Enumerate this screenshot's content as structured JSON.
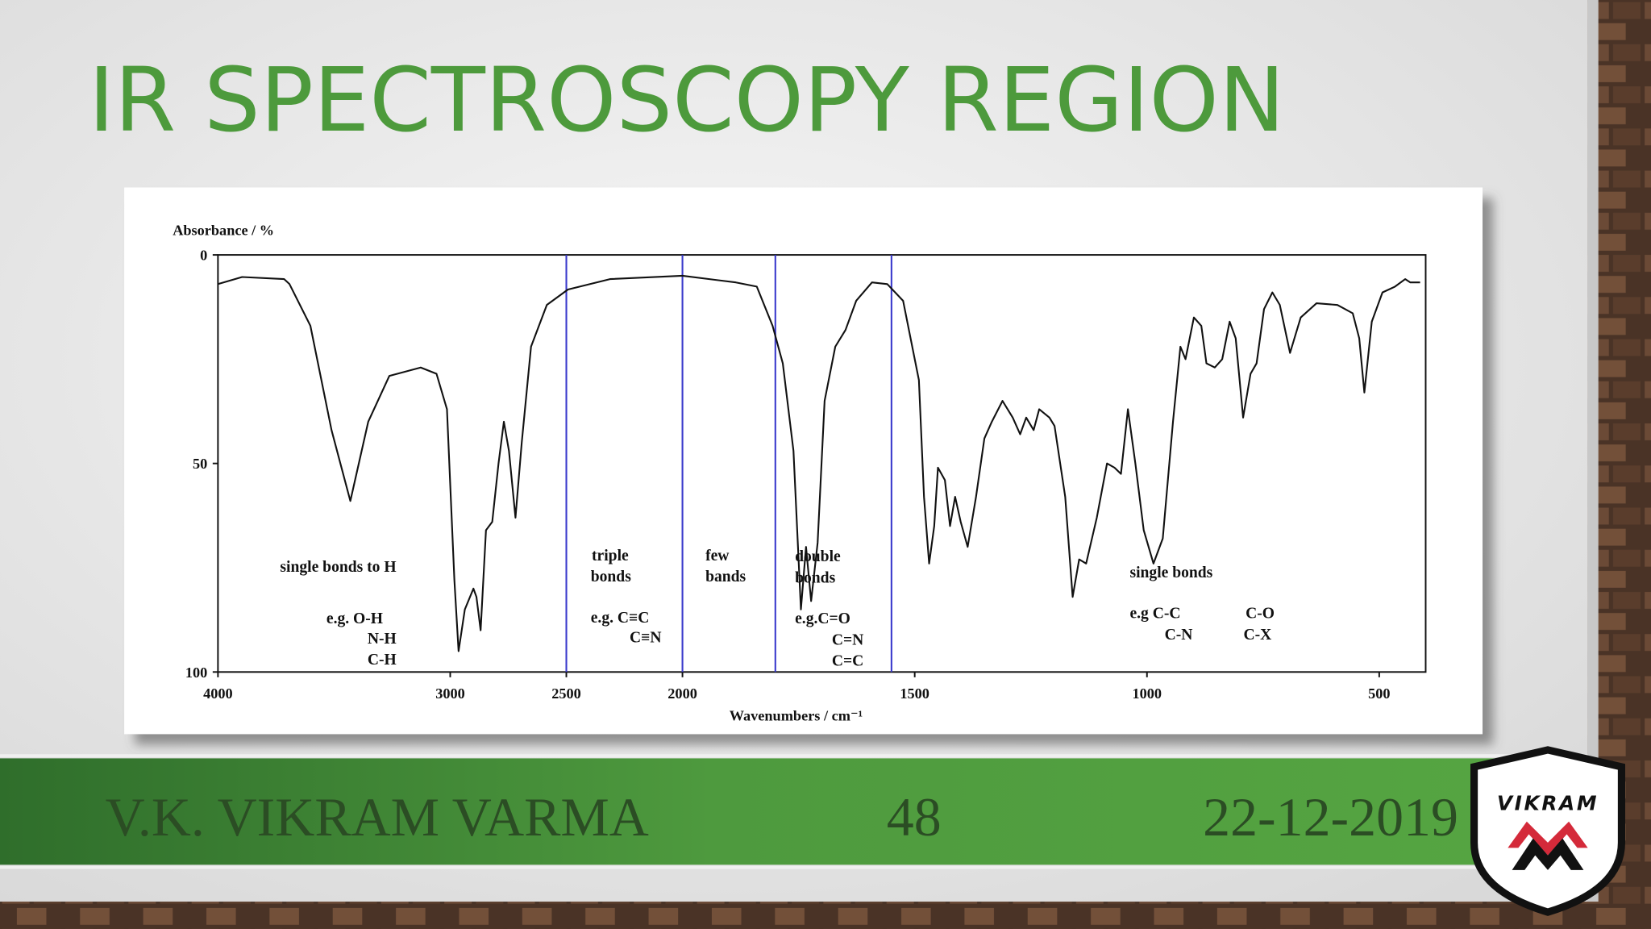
{
  "title": "IR SPECTROSCOPY REGION",
  "footer": {
    "author": "V.K. VIKRAM VARMA",
    "page": "48",
    "date": "22-12-2019"
  },
  "logo": {
    "text": "VIKRAM"
  },
  "chart_data": {
    "type": "line",
    "ylabel": "Absorbance / %",
    "xlabel": "Wavenumbers / cm⁻¹",
    "xlim": [
      4000,
      400
    ],
    "x_scale_change": {
      "at": 2000,
      "factor": 2
    },
    "ylim": [
      0,
      100
    ],
    "y_inverted": true,
    "yticks": [
      0,
      50,
      100
    ],
    "xticks": [
      4000,
      3000,
      2500,
      2000,
      1500,
      1000,
      500
    ],
    "grid": false,
    "color": "#111111",
    "dividers": [
      2500,
      2000,
      1800,
      1550
    ],
    "divider_color": "#3a3acc",
    "x": [
      4000,
      3896,
      3715,
      3692,
      3602,
      3511,
      3430,
      3353,
      3262,
      3127,
      3059,
      3014,
      2982,
      2964,
      2937,
      2900,
      2887,
      2869,
      2846,
      2819,
      2792,
      2769,
      2747,
      2719,
      2692,
      2652,
      2584,
      2493,
      2312,
      2000,
      1885,
      1840,
      1806,
      1784,
      1761,
      1745,
      1734,
      1723,
      1709,
      1694,
      1671,
      1649,
      1626,
      1592,
      1559,
      1525,
      1491,
      1480,
      1469,
      1458,
      1450,
      1435,
      1424,
      1413,
      1401,
      1386,
      1368,
      1350,
      1334,
      1311,
      1289,
      1273,
      1260,
      1244,
      1232,
      1210,
      1199,
      1176,
      1160,
      1146,
      1131,
      1108,
      1086,
      1070,
      1056,
      1041,
      1025,
      1007,
      986,
      966,
      944,
      928,
      917,
      899,
      883,
      872,
      854,
      838,
      822,
      809,
      793,
      777,
      764,
      748,
      730,
      714,
      692,
      669,
      635,
      590,
      557,
      543,
      532,
      516,
      493,
      466,
      444,
      433,
      412
    ],
    "values": [
      7,
      5.3,
      5.8,
      7,
      17,
      42,
      59,
      40,
      29,
      27,
      28.5,
      37,
      78,
      95,
      85,
      80,
      82,
      90,
      66,
      64,
      50,
      40,
      47,
      63,
      45,
      22,
      12,
      8.3,
      5.8,
      5,
      6.6,
      7.6,
      17,
      26,
      47,
      85,
      70,
      83,
      69,
      35,
      22,
      18,
      11,
      6.6,
      7,
      11,
      30,
      58,
      74,
      65,
      51,
      54,
      65,
      58,
      64,
      70,
      58,
      44,
      40,
      35,
      39,
      43,
      39,
      42,
      37,
      39,
      41,
      58,
      82,
      73,
      74,
      63,
      50,
      51,
      52.5,
      37,
      50,
      66,
      74,
      68,
      40,
      22,
      25,
      15,
      17,
      26,
      27,
      25,
      16,
      20,
      39,
      28.5,
      26,
      13,
      9,
      12,
      23.5,
      15,
      11.6,
      12,
      14,
      20,
      33,
      16,
      9,
      7.6,
      5.8,
      6.6,
      6.6
    ],
    "annotations": [
      "single bonds to H",
      "e.g. O-H",
      "N-H",
      "C-H",
      "triple",
      "bonds",
      "e.g. C≡C",
      "C≡N",
      "few",
      "bands",
      "double",
      "bonds",
      "e.g.C=O",
      "C=N",
      "C=C",
      "single bonds",
      "e.g C-C",
      "C-N",
      "C-O",
      "C-X"
    ]
  }
}
